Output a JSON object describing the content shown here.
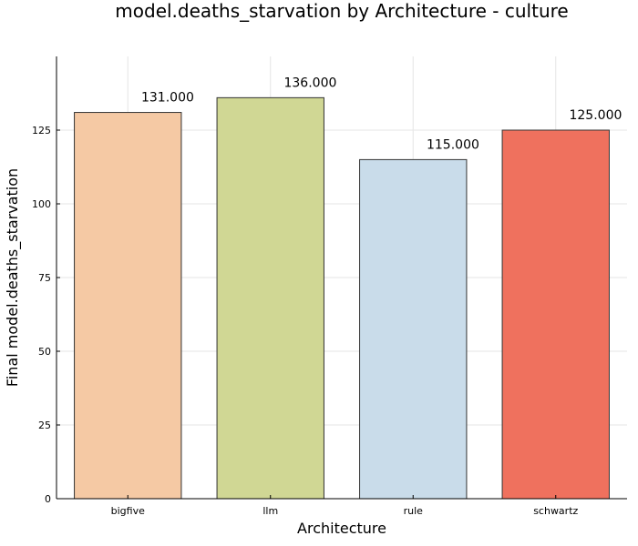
{
  "chart_data": {
    "type": "bar",
    "title": "model.deaths_starvation by Architecture - culture",
    "xlabel": "Architecture",
    "ylabel": "Final model.deaths_starvation",
    "categories": [
      "bigfive",
      "llm",
      "rule",
      "schwartz"
    ],
    "values": [
      131,
      136,
      115,
      125
    ],
    "value_labels": [
      "131.000",
      "136.000",
      "115.000",
      "125.000"
    ],
    "colors": [
      "#f5c9a4",
      "#d0d794",
      "#c9dcea",
      "#ef715e"
    ],
    "ylim": [
      0,
      150
    ],
    "yticks": [
      0,
      25,
      50,
      75,
      100,
      125
    ],
    "ytick_labels": [
      "0",
      "25",
      "50",
      "75",
      "100",
      "125"
    ],
    "grid": true,
    "legend": "none"
  }
}
